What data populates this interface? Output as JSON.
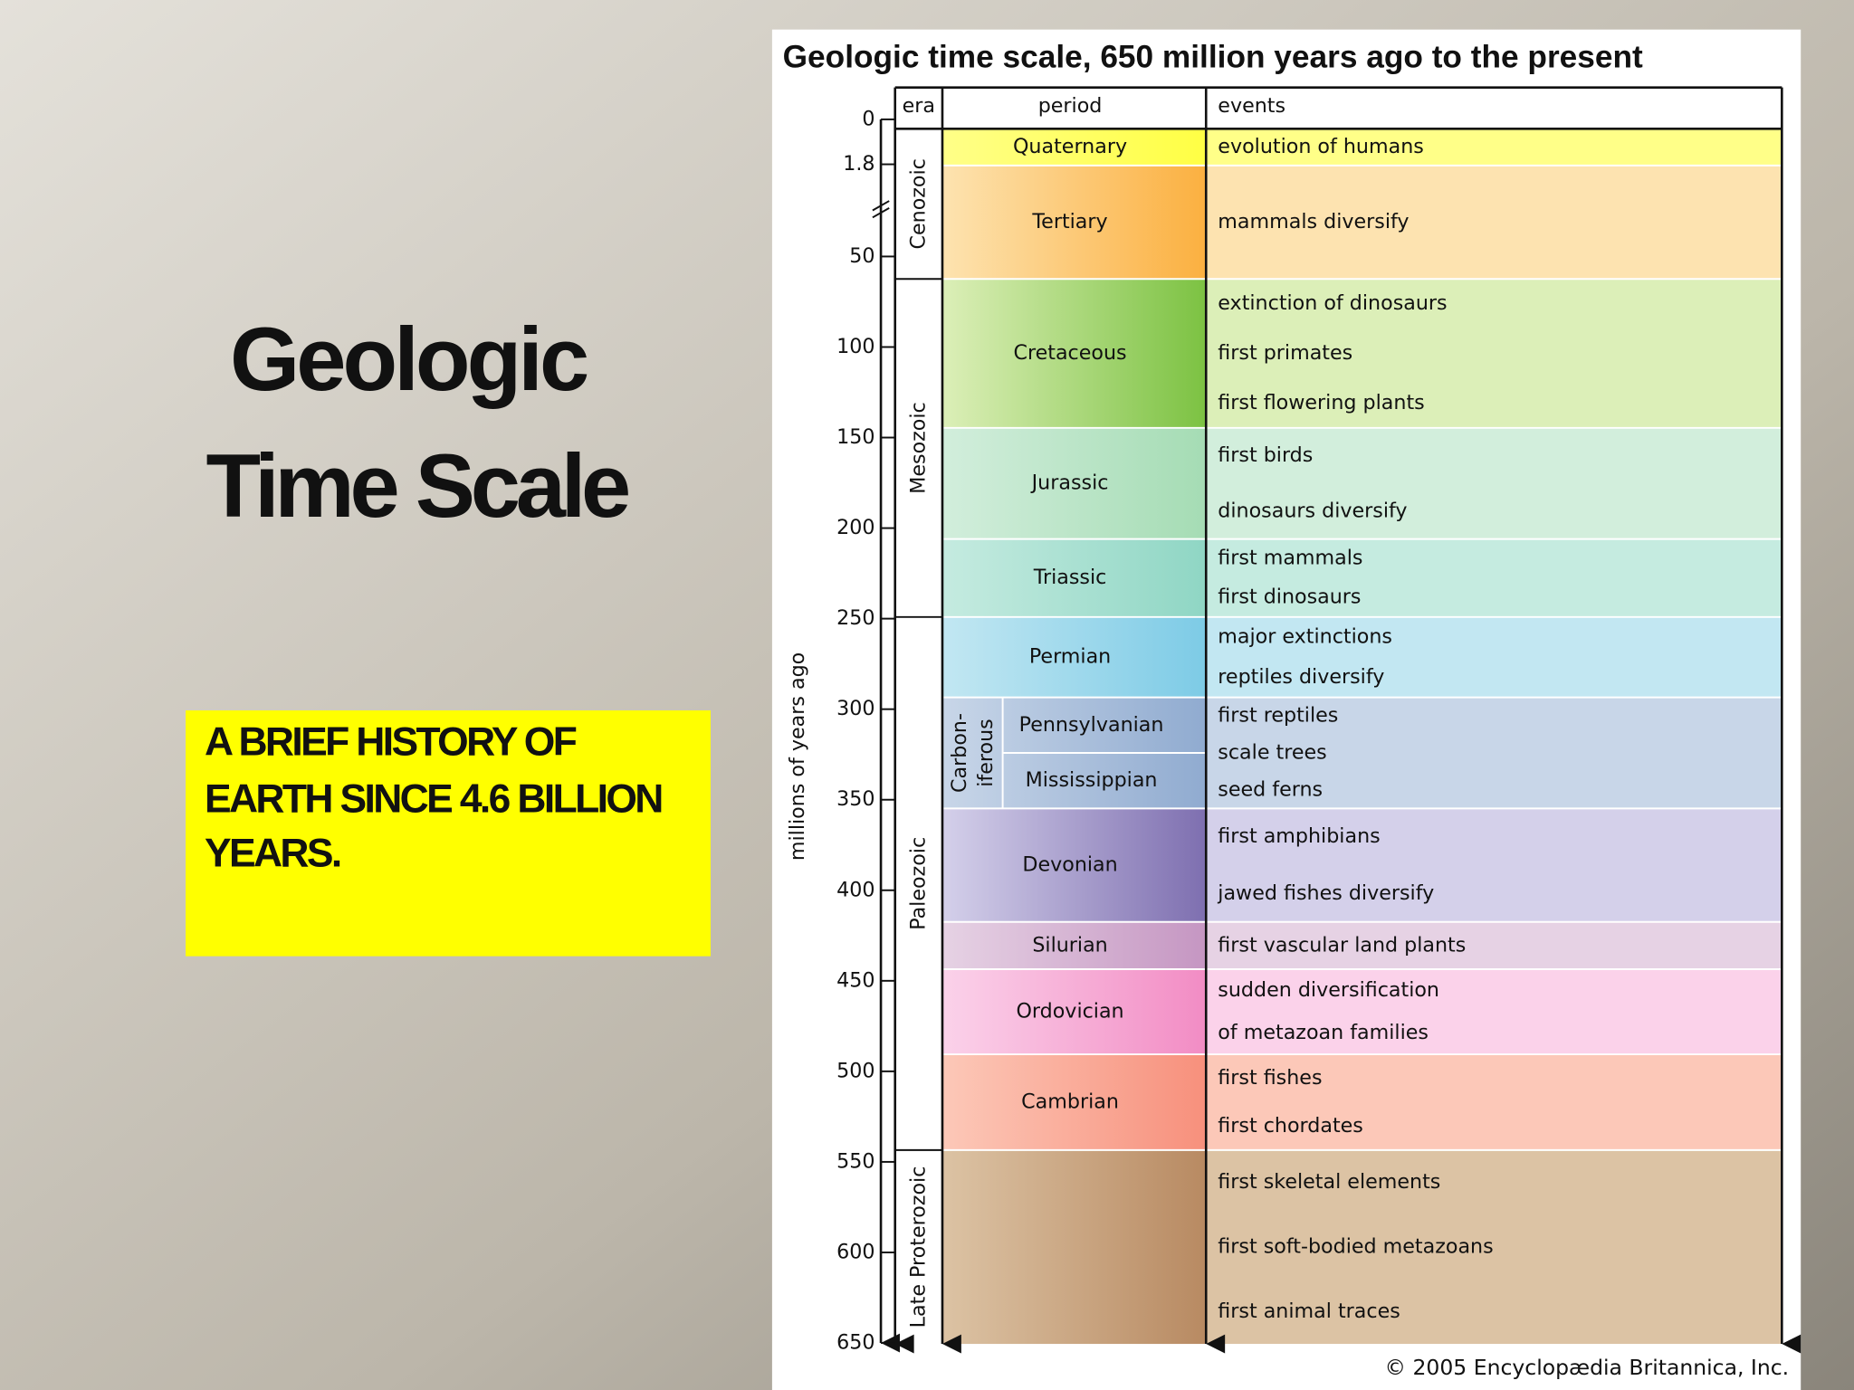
{
  "slide": {
    "title": [
      "Geologic",
      "Time Scale"
    ],
    "subtitle": [
      "A BRIEF HISTORY OF",
      "EARTH SINCE 4.6 BILLION",
      "YEARS."
    ]
  },
  "figure": {
    "title": "Geologic time scale, 650 million years ago to the present",
    "headers": [
      "era",
      "period",
      "events"
    ],
    "axis_label": "millions of years ago",
    "ticks": [
      0,
      1.8,
      50,
      100,
      150,
      200,
      250,
      300,
      350,
      400,
      450,
      500,
      550,
      600,
      650
    ],
    "eras": [
      "Cenozoic",
      "Mesozoic",
      "Paleozoic",
      "Late Proterozoic"
    ],
    "rows": [
      {
        "period": "Quaternary",
        "events": [
          "evolution of humans"
        ]
      },
      {
        "period": "Tertiary",
        "events": [
          "mammals diversify"
        ]
      },
      {
        "period": "Cretaceous",
        "events": [
          "extinction of dinosaurs",
          "first primates",
          "first flowering plants"
        ]
      },
      {
        "period": "Jurassic",
        "events": [
          "first birds",
          "dinosaurs diversify"
        ]
      },
      {
        "period": "Triassic",
        "events": [
          "first mammals",
          "first dinosaurs"
        ]
      },
      {
        "period": "Permian",
        "events": [
          "major extinctions",
          "reptiles diversify"
        ]
      },
      {
        "group": [
          "Carbon-",
          "iferous"
        ],
        "subperiods": [
          "Pennsylvanian",
          "Mississippian"
        ],
        "events": [
          "first reptiles",
          "scale trees",
          "seed ferns"
        ]
      },
      {
        "period": "Devonian",
        "events": [
          "first amphibians",
          "jawed fishes diversify"
        ]
      },
      {
        "period": "Silurian",
        "events": [
          "first vascular land plants"
        ]
      },
      {
        "period": "Ordovician",
        "events": [
          "sudden diversification",
          "of metazoan families"
        ]
      },
      {
        "period": "Cambrian",
        "events": [
          "first fishes",
          "first chordates"
        ]
      },
      {
        "events": [
          "first skeletal elements",
          "first soft-bodied metazoans",
          "first animal traces"
        ]
      }
    ],
    "credit": "© 2005 Encyclopædia Britannica, Inc."
  }
}
